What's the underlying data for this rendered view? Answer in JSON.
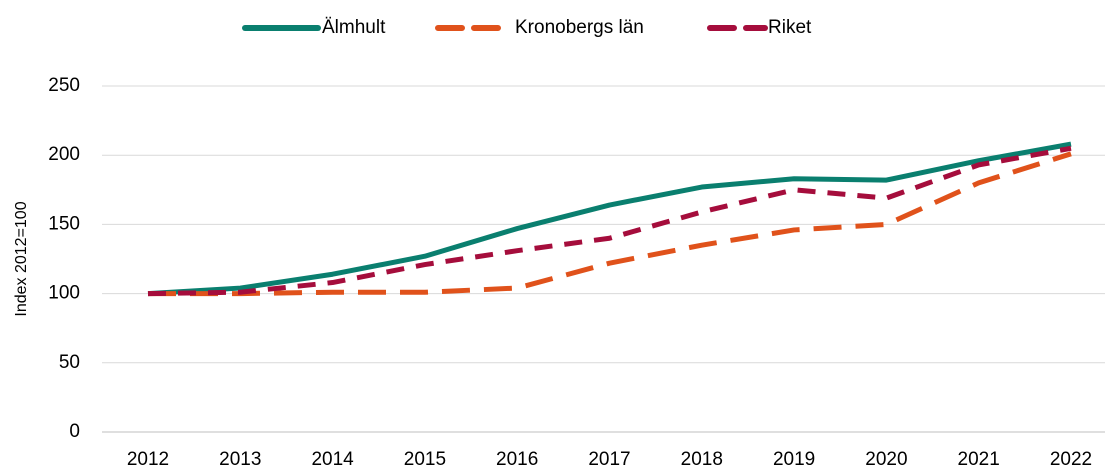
{
  "chart_data": {
    "type": "line",
    "y_label": "Index 2012=100",
    "categories": [
      "2012",
      "2013",
      "2014",
      "2015",
      "2016",
      "2017",
      "2018",
      "2019",
      "2020",
      "2021",
      "2022"
    ],
    "series": [
      {
        "name": "Älmhult",
        "color": "#0a7f6f",
        "dash": "solid",
        "values": [
          100,
          104,
          114,
          127,
          147,
          164,
          177,
          183,
          182,
          196,
          208
        ]
      },
      {
        "name": "Kronobergs län",
        "color": "#e0521b",
        "dash": "long",
        "values": [
          100,
          100,
          101,
          101,
          104,
          122,
          135,
          146,
          150,
          180,
          201
        ]
      },
      {
        "name": "Riket",
        "color": "#a50d3c",
        "dash": "medium",
        "values": [
          100,
          101,
          108,
          121,
          131,
          140,
          159,
          175,
          169,
          193,
          205
        ]
      }
    ],
    "ylim": [
      0,
      250
    ],
    "yticks": [
      0,
      50,
      100,
      150,
      200,
      250
    ],
    "grid": true,
    "legend": "top"
  }
}
